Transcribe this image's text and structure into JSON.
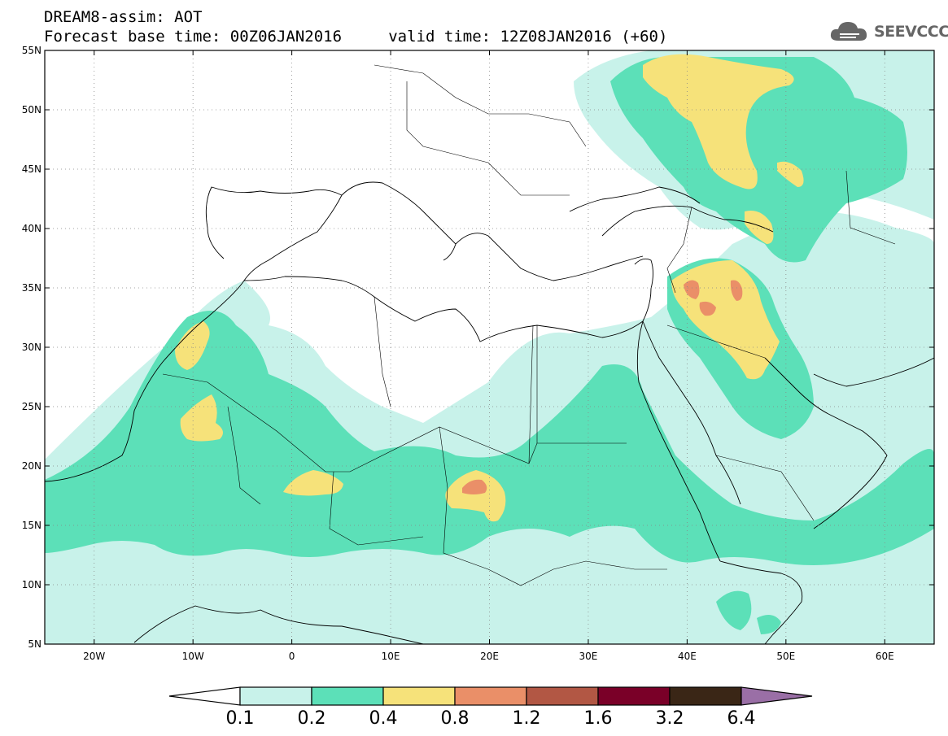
{
  "header": {
    "line1": "DREAM8-assim: AOT",
    "line2": "Forecast base time: 00Z06JAN2016     valid time: 12Z08JAN2016 (+60)"
  },
  "logo": {
    "text": "SEEVCCC",
    "icon": "cloud-icon"
  },
  "map": {
    "lon_range": [
      -25,
      65
    ],
    "lat_range": [
      5,
      55
    ],
    "lat_ticks": [
      {
        "value": 55,
        "label": "55N"
      },
      {
        "value": 50,
        "label": "50N"
      },
      {
        "value": 45,
        "label": "45N"
      },
      {
        "value": 40,
        "label": "40N"
      },
      {
        "value": 35,
        "label": "35N"
      },
      {
        "value": 30,
        "label": "30N"
      },
      {
        "value": 25,
        "label": "25N"
      },
      {
        "value": 20,
        "label": "20N"
      },
      {
        "value": 15,
        "label": "15N"
      },
      {
        "value": 10,
        "label": "10N"
      },
      {
        "value": 5,
        "label": "5N"
      }
    ],
    "lon_ticks": [
      {
        "value": -20,
        "label": "20W"
      },
      {
        "value": -10,
        "label": "10W"
      },
      {
        "value": 0,
        "label": "0"
      },
      {
        "value": 10,
        "label": "10E"
      },
      {
        "value": 20,
        "label": "20E"
      },
      {
        "value": 30,
        "label": "30E"
      },
      {
        "value": 40,
        "label": "40E"
      },
      {
        "value": 50,
        "label": "50E"
      },
      {
        "value": 60,
        "label": "60E"
      }
    ]
  },
  "colorbar": {
    "colors": [
      "#c8f2ea",
      "#5ce0b8",
      "#f6e27a",
      "#ea8f68",
      "#b25744",
      "#7a0028",
      "#3a2616",
      "#9a6fa6"
    ],
    "labels": [
      "0.1",
      "0.2",
      "0.4",
      "0.8",
      "1.2",
      "1.6",
      "3.2",
      "6.4"
    ]
  }
}
